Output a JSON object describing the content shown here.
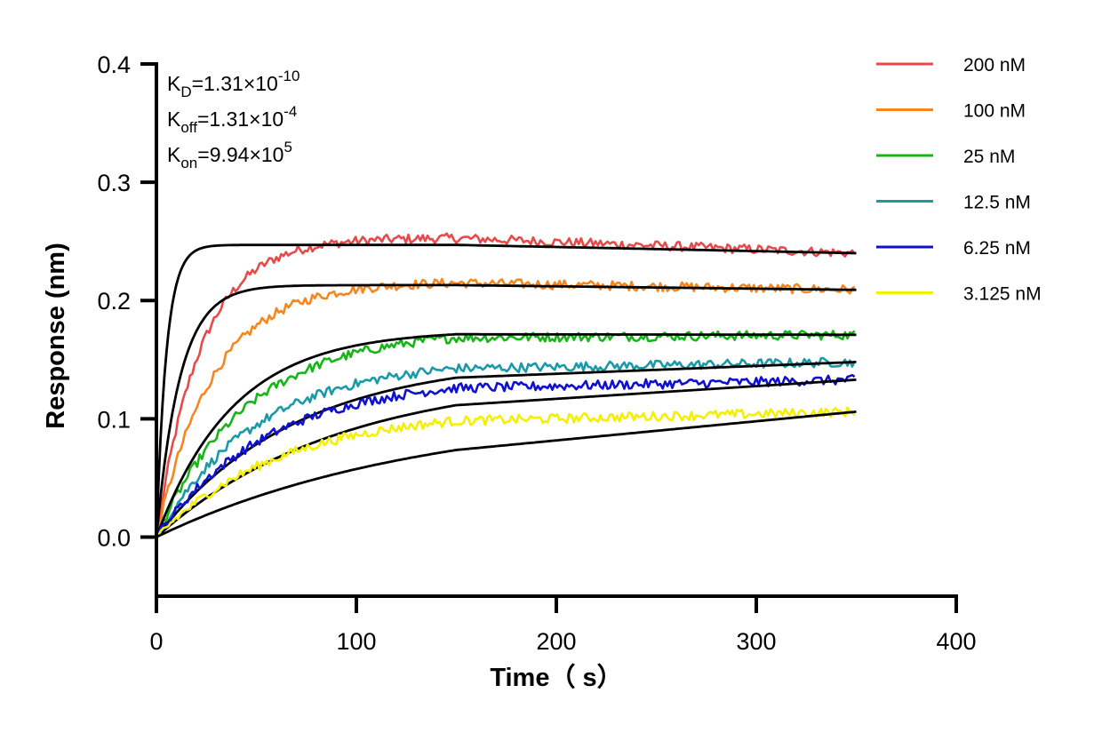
{
  "chart_data": {
    "type": "line",
    "title": "",
    "xlabel": "Time（ s）",
    "ylabel": "Response (nm)",
    "xlim": [
      0,
      400
    ],
    "ylim": [
      -0.05,
      0.4
    ],
    "x_ticks": [
      0,
      100,
      200,
      300,
      400
    ],
    "x_tick_labels": [
      "0",
      "100",
      "200",
      "300",
      "400"
    ],
    "y_ticks": [
      0.0,
      0.1,
      0.2,
      0.3,
      0.4
    ],
    "y_tick_labels": [
      "0.0",
      "0.1",
      "0.2",
      "0.3",
      "0.4"
    ],
    "grid": false,
    "legend_position": "top-right",
    "annotations": [
      {
        "name": "KD",
        "base": "K",
        "sub": "D",
        "value": "=1.31×10",
        "exp": "-10"
      },
      {
        "name": "Koff",
        "base": "K",
        "sub": "off",
        "value": "=1.31×10",
        "exp": "-4"
      },
      {
        "name": "Kon",
        "base": "K",
        "sub": "on",
        "value": "=9.94×10",
        "exp": "5"
      }
    ],
    "association_end_s": 150,
    "time_end_s": 350,
    "fit_color": "#000000",
    "series": [
      {
        "name": "200 nM",
        "color": "#e84a4a",
        "plateau": 0.253,
        "fit_plateau": 0.247,
        "fit_end": 0.24,
        "obs_rate": 0.045,
        "fit_rate": 0.2,
        "noise": 0.004
      },
      {
        "name": "100 nM",
        "color": "#f7861f",
        "plateau": 0.216,
        "fit_plateau": 0.213,
        "fit_end": 0.209,
        "obs_rate": 0.035,
        "fit_rate": 0.085,
        "noise": 0.004
      },
      {
        "name": "25 nM",
        "color": "#18b518",
        "plateau": 0.175,
        "fit_plateau": 0.175,
        "fit_end": 0.171,
        "obs_rate": 0.022,
        "fit_rate": 0.026,
        "noise": 0.004
      },
      {
        "name": "12.5 nM",
        "color": "#1a9aa8",
        "plateau": 0.15,
        "fit_plateau": 0.152,
        "fit_end": 0.148,
        "obs_rate": 0.02,
        "fit_rate": 0.0145,
        "noise": 0.004
      },
      {
        "name": "6.25 nM",
        "color": "#1010d0",
        "plateau": 0.135,
        "fit_plateau": 0.138,
        "fit_end": 0.133,
        "obs_rate": 0.018,
        "fit_rate": 0.011,
        "noise": 0.004
      },
      {
        "name": "3.125 nM",
        "color": "#f5f000",
        "plateau": 0.108,
        "fit_plateau": 0.109,
        "fit_end": 0.106,
        "obs_rate": 0.016,
        "fit_rate": 0.0075,
        "noise": 0.004
      }
    ]
  }
}
